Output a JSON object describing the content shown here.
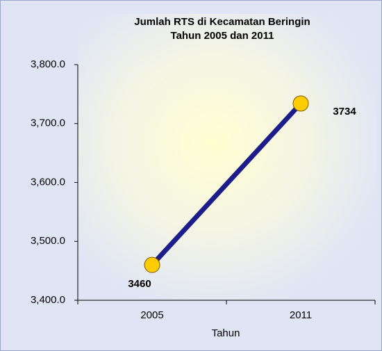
{
  "chart_data": {
    "type": "line",
    "title": [
      "Jumlah RTS di Kecamatan Beringin",
      "Tahun 2005 dan 2011"
    ],
    "x_label": "Tahun",
    "categories": [
      "2005",
      "2011"
    ],
    "series": [
      {
        "name": "Jumlah RTS",
        "color": "#1c1c8a",
        "marker_color": "#ffcc00",
        "values": [
          3460,
          3734
        ]
      }
    ],
    "ylim": [
      3400,
      3800
    ],
    "yticks": [
      {
        "value": 3400,
        "label": "3,400.0"
      },
      {
        "value": 3500,
        "label": "3,500.0"
      },
      {
        "value": 3600,
        "label": "3,600.0"
      },
      {
        "value": 3700,
        "label": "3,700.0"
      },
      {
        "value": 3800,
        "label": "3,800.0"
      }
    ],
    "grid": false
  }
}
